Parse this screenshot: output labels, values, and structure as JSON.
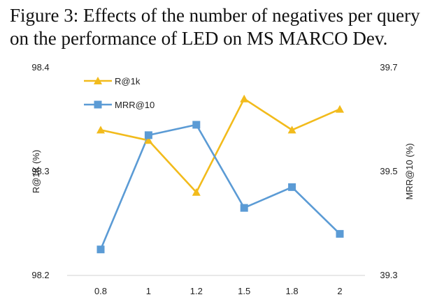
{
  "caption": "Figure 3: Effects of the number of negatives per query on the performance of LED on MS MARCO Dev.",
  "chart_data": {
    "type": "line",
    "categories": [
      "0.8",
      "1",
      "1.2",
      "1.5",
      "1.8",
      "2"
    ],
    "ylabel_left": "R@1K (%)",
    "ylabel_right": "MRR@10 (%)",
    "y_left": {
      "ticks": [
        "98.2",
        "98.3",
        "98.4"
      ],
      "ylim": [
        98.2,
        98.4
      ]
    },
    "y_right": {
      "ticks": [
        "39.3",
        "39.5",
        "39.7"
      ],
      "ylim": [
        39.3,
        39.7
      ]
    },
    "legend_position": "top-left",
    "grid": false,
    "series": [
      {
        "name": "R@1k",
        "axis": "left",
        "color": "#F2BB1C",
        "marker": "triangle",
        "values": [
          98.34,
          98.33,
          98.28,
          98.37,
          98.34,
          98.36
        ]
      },
      {
        "name": "MRR@10",
        "axis": "right",
        "color": "#5B9BD5",
        "marker": "square",
        "values": [
          39.35,
          39.57,
          39.59,
          39.43,
          39.47,
          39.38
        ]
      }
    ]
  }
}
